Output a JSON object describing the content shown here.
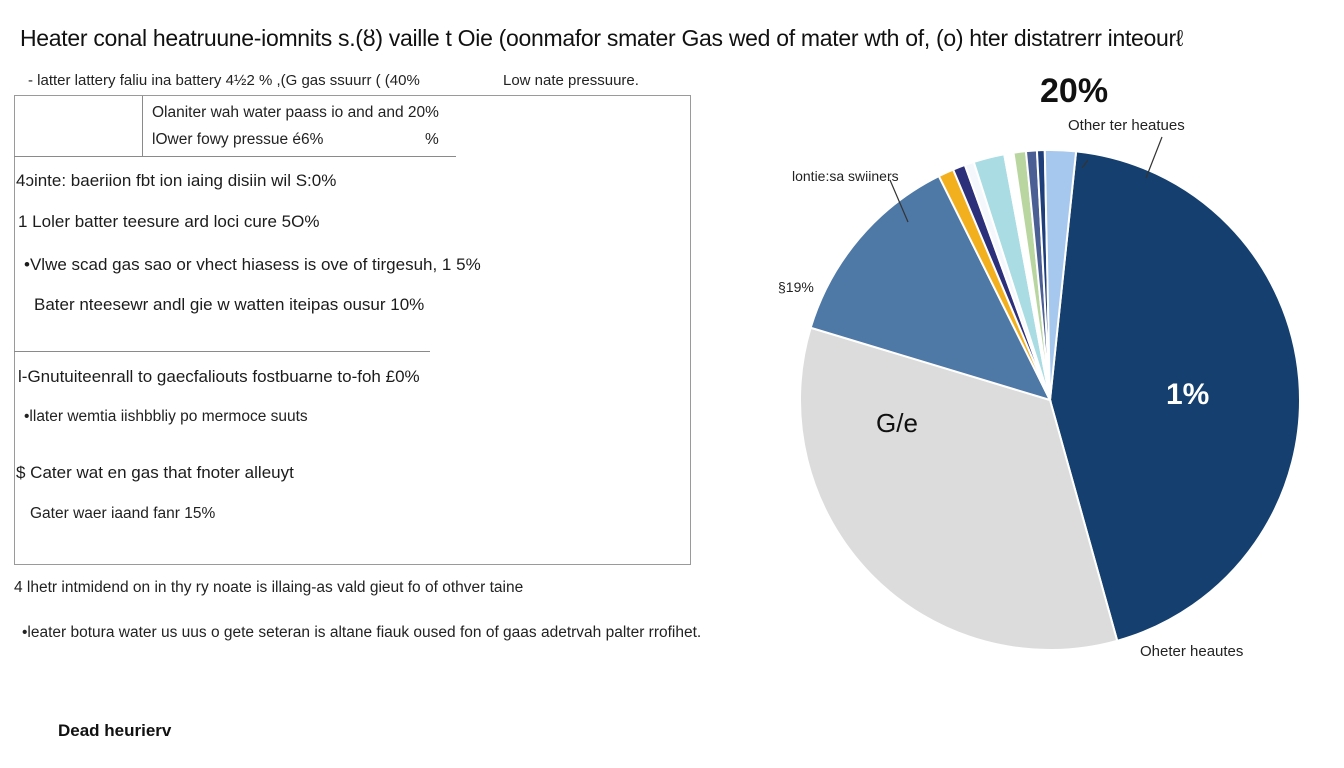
{
  "chart_data": {
    "type": "pie",
    "title": "Heater conal heatruune-iomnits s.(ȣ)  vaille t Oie (oonmafor smater Gas wed of mater wth of, (o) hter distatrerr inteourℓ",
    "slices": [
      {
        "label": "",
        "value": 44.0,
        "color": "#143f6e"
      },
      {
        "label": "G/e",
        "value": 34.0,
        "color": "#dcdcdc"
      },
      {
        "label": "",
        "value": 13.0,
        "color": "#4e78a6"
      },
      {
        "label": "",
        "value": 1.0,
        "color": "#f2b01e"
      },
      {
        "label": "",
        "value": 0.8,
        "color": "#2c2f7a"
      },
      {
        "label": "",
        "value": 0.6,
        "color": "#f4f7fb"
      },
      {
        "label": "",
        "value": 2.0,
        "color": "#a9dce3"
      },
      {
        "label": "",
        "value": 0.6,
        "color": "#ffffff"
      },
      {
        "label": "",
        "value": 0.8,
        "color": "#b9d6a0"
      },
      {
        "label": "",
        "value": 0.7,
        "color": "#4b5f95"
      },
      {
        "label": "",
        "value": 0.5,
        "color": "#1f3f7a"
      },
      {
        "label": "",
        "value": 2.0,
        "color": "#a6c8ee"
      }
    ],
    "annotations": {
      "top_pct": "20%",
      "inner_pct": "1%",
      "left_pct": "§19%",
      "slice_label": "G/e",
      "callout_left": "lontie:sa swiiners",
      "callout_top": "Other ter heatues",
      "callout_bottom": "Oheter heautes"
    }
  },
  "left_panel": {
    "header_left": "- latter lattery faliu ina battery 4½2 % ,(G gas ssuurr ( (40%",
    "header_right": "Low nate pressuure.",
    "box_line1": "Olaniter wah water paass io and and 20%",
    "box_line2": "lOwer fowy pressue é6%",
    "box_pct": "%",
    "items": [
      "4ɔinte: baeriion fbt ion iaing disiin wil S:0%",
      "1 Loler batter teesure ard loci cure  5O%",
      "•Vlwe scad gas sao or vhect hiasess is ove of tirgesuh, 1 5%",
      "Bater nteesewr andl gie w watten iteipas ousur 10%",
      "l-Gnutuiteenrall to gaecfaliouts fostbuarne to-foh  £0%",
      "•llater wemtia iishbbliy po mermoce suuts",
      "$ Cater wat en gas that fnoter alleuyt",
      "Gater waer iaand fanr 15%"
    ],
    "bottom_lines": [
      "4 lhetr intmidend on in thy ry noate is illaing-as vald gieut fo of othver taine",
      "•leater botura water us uus o gete seteran is altane fiauk oused fon of gaas adetrvah palter rrofihet."
    ]
  },
  "footer": "Dead heurierv"
}
